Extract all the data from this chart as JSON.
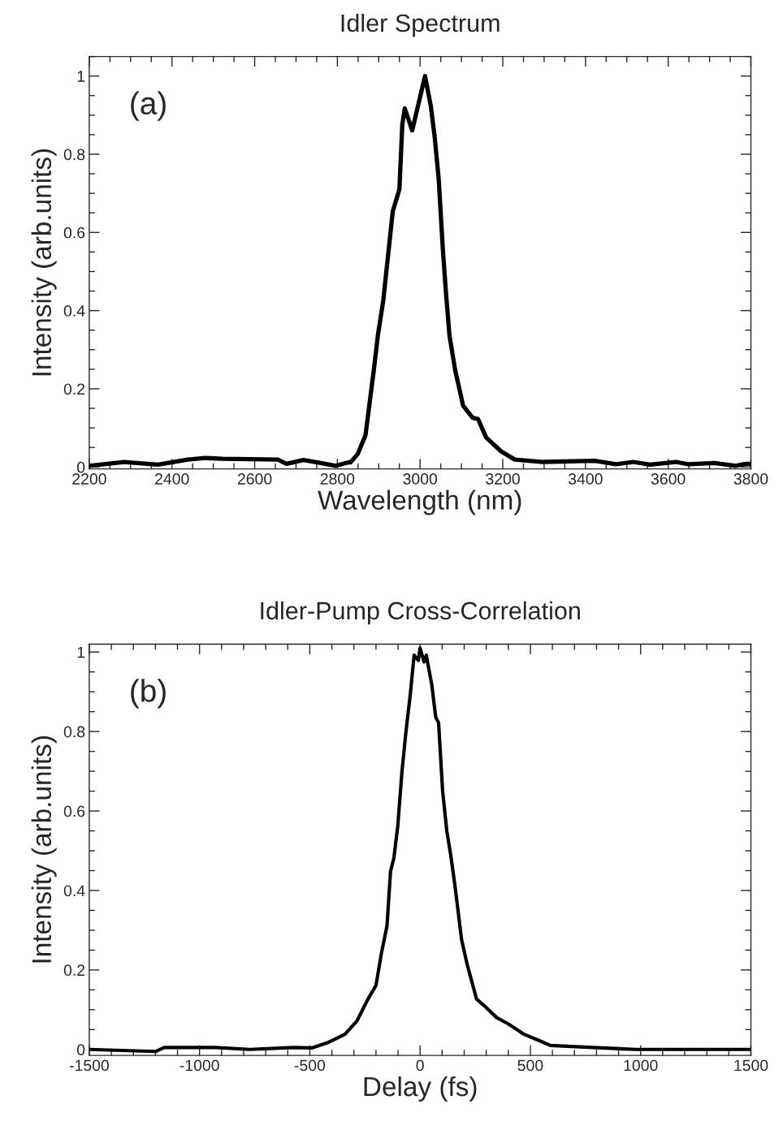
{
  "chart_data": [
    {
      "type": "line",
      "title": "Idler Spectrum",
      "xlabel": "Wavelength (nm)",
      "ylabel": "Intensity (arb.units)",
      "annotations": [
        "(a)"
      ],
      "xlim": [
        2200,
        3800
      ],
      "ylim": [
        -0.005,
        1.05
      ],
      "xticks": [
        2200,
        2400,
        2600,
        2800,
        3000,
        3200,
        3400,
        3600,
        3800
      ],
      "yticks": [
        0,
        0.2,
        0.4,
        0.6,
        0.8,
        1
      ],
      "series": [
        {
          "color": "#000000",
          "x": [
            2200,
            2284,
            2366,
            2439,
            2480,
            2522,
            2656,
            2677,
            2718,
            2760,
            2796,
            2827,
            2832,
            2849,
            2868,
            2888,
            2898,
            2911,
            2934,
            2950,
            2957,
            2963,
            2981,
            3012,
            3026,
            3035,
            3045,
            3055,
            3062,
            3071,
            3085,
            3104,
            3127,
            3140,
            3160,
            3196,
            3229,
            3297,
            3422,
            3474,
            3515,
            3556,
            3618,
            3649,
            3712,
            3763,
            3788,
            3800
          ],
          "values": [
            0.003,
            0.013,
            0.006,
            0.019,
            0.023,
            0.021,
            0.019,
            0.008,
            0.018,
            0.01,
            0.003,
            0.012,
            0.012,
            0.033,
            0.081,
            0.247,
            0.337,
            0.426,
            0.654,
            0.71,
            0.876,
            0.917,
            0.861,
            1.0,
            0.923,
            0.847,
            0.737,
            0.558,
            0.454,
            0.337,
            0.247,
            0.157,
            0.126,
            0.123,
            0.075,
            0.04,
            0.019,
            0.013,
            0.016,
            0.007,
            0.013,
            0.006,
            0.013,
            0.007,
            0.01,
            0.003,
            0.008,
            0.008
          ]
        }
      ]
    },
    {
      "type": "line",
      "title": "Idler-Pump Cross-Correlation",
      "xlabel": "Delay (fs)",
      "ylabel": "Intensity (arb.units)",
      "annotations": [
        "(b)"
      ],
      "xlim": [
        -1500,
        1500
      ],
      "ylim": [
        -0.015,
        1.02
      ],
      "xticks": [
        -1500,
        -1000,
        -500,
        0,
        500,
        1000,
        1500
      ],
      "yticks": [
        0,
        0.2,
        0.4,
        0.6,
        0.8,
        1
      ],
      "series": [
        {
          "color": "#000000",
          "x": [
            -1500,
            -1198,
            -1160,
            -927,
            -772,
            -576,
            -489,
            -415,
            -341,
            -286,
            -236,
            -200,
            -175,
            -150,
            -134,
            -119,
            -101,
            -82,
            -64,
            -45,
            -27,
            -8,
            0,
            18,
            28,
            53,
            71,
            84,
            102,
            121,
            139,
            158,
            188,
            213,
            256,
            299,
            348,
            398,
            472,
            546,
            591,
            785,
            979,
            1175,
            1474,
            1500
          ],
          "values": [
            0,
            -0.005,
            0.005,
            0.005,
            0,
            0.005,
            0.004,
            0.018,
            0.038,
            0.072,
            0.127,
            0.161,
            0.243,
            0.311,
            0.448,
            0.481,
            0.563,
            0.7,
            0.8,
            0.89,
            0.992,
            0.979,
            1.01,
            0.975,
            0.992,
            0.918,
            0.836,
            0.822,
            0.652,
            0.55,
            0.489,
            0.413,
            0.277,
            0.215,
            0.127,
            0.106,
            0.08,
            0.065,
            0.038,
            0.021,
            0.01,
            0.005,
            0,
            0,
            0,
            0
          ]
        }
      ]
    }
  ]
}
